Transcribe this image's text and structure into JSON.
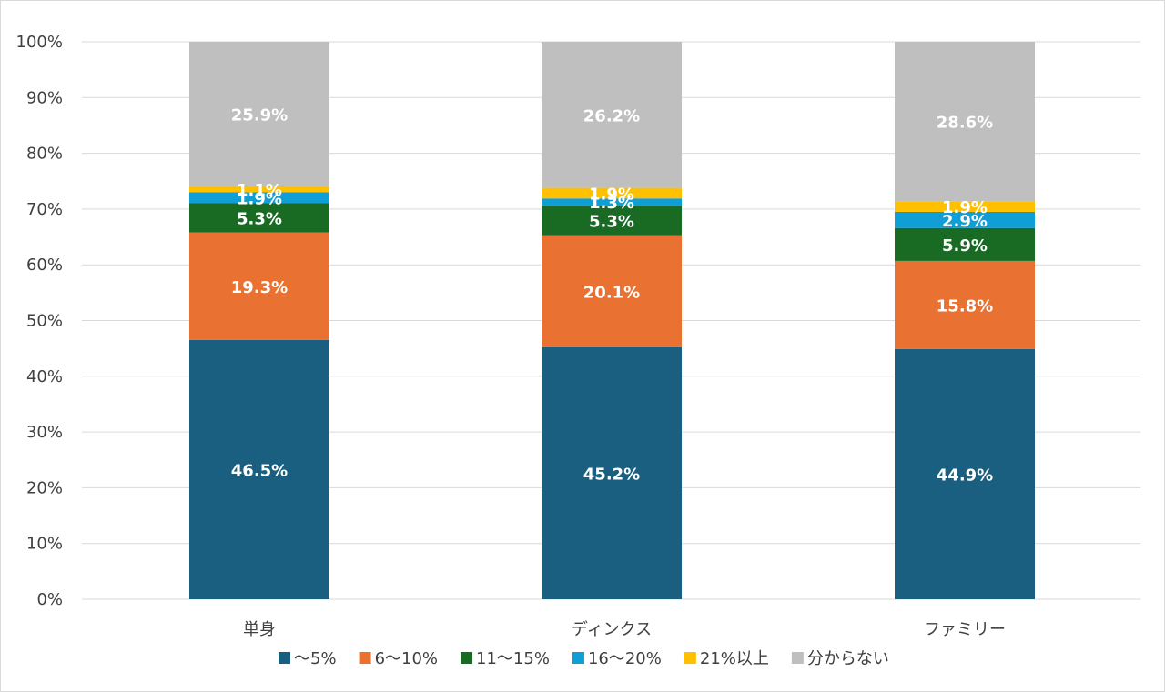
{
  "chart_data": {
    "type": "bar",
    "stacked": true,
    "categories": [
      "単身",
      "ディンクス",
      "ファミリー"
    ],
    "series": [
      {
        "name": "～5%",
        "color": "#1a5e80",
        "values": [
          46.5,
          45.2,
          44.9
        ]
      },
      {
        "name": "6～10%",
        "color": "#e97132",
        "values": [
          19.3,
          20.1,
          15.8
        ]
      },
      {
        "name": "11～15%",
        "color": "#196b24",
        "values": [
          5.3,
          5.3,
          5.9
        ]
      },
      {
        "name": "16～20%",
        "color": "#0f9ed5",
        "values": [
          1.9,
          1.3,
          2.9
        ]
      },
      {
        "name": "21%以上",
        "color": "#ffc000",
        "values": [
          1.1,
          1.9,
          1.9
        ]
      },
      {
        "name": "分からない",
        "color": "#bfbfbf",
        "values": [
          25.9,
          26.2,
          28.6
        ]
      }
    ],
    "data_labels": [
      [
        "46.5%",
        "45.2%",
        "44.9%"
      ],
      [
        "19.3%",
        "20.1%",
        "15.8%"
      ],
      [
        "5.3%",
        "5.3%",
        "5.9%"
      ],
      [
        "1.9%",
        "1.3%",
        "2.9%"
      ],
      [
        "1.1%",
        "1.9%",
        "1.9%"
      ],
      [
        "25.9%",
        "26.2%",
        "28.6%"
      ]
    ],
    "y_ticks": [
      "0%",
      "10%",
      "20%",
      "30%",
      "40%",
      "50%",
      "60%",
      "70%",
      "80%",
      "90%",
      "100%"
    ],
    "ylim": [
      0,
      100
    ],
    "grid": true,
    "legend_position": "bottom"
  }
}
